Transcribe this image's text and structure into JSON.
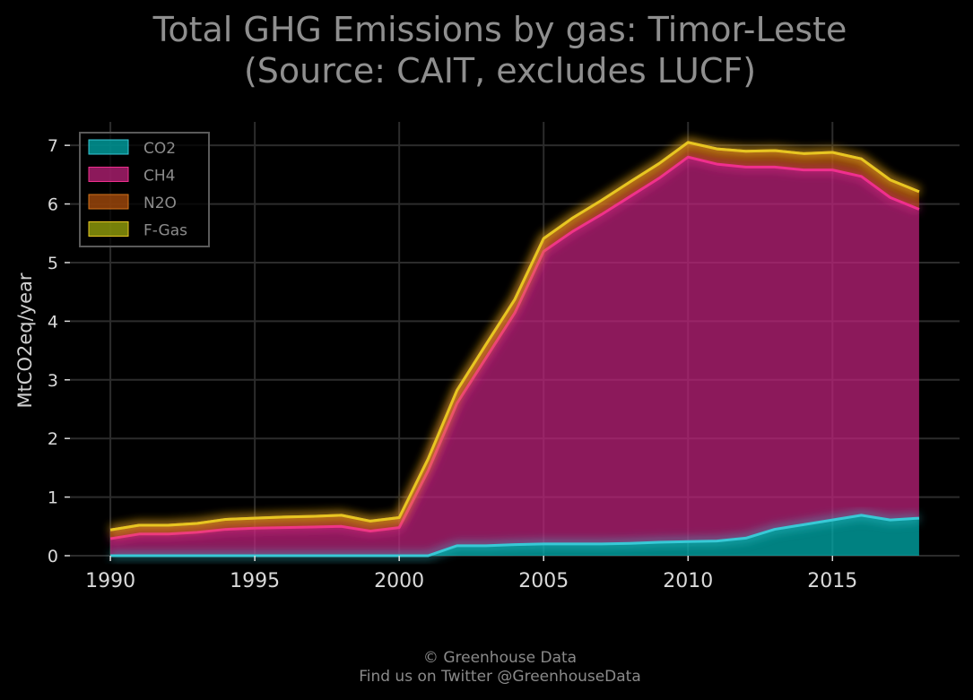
{
  "title": {
    "line1": "Total GHG Emissions by gas: Timor-Leste",
    "line2": "(Source: CAIT, excludes LUCF)"
  },
  "credits": {
    "line1": "© Greenhouse Data",
    "line2": "Find us on Twitter @GreenhouseData"
  },
  "chart_data": {
    "type": "area",
    "stacked": true,
    "title": "Total GHG Emissions by gas: Timor-Leste (Source: CAIT, excludes LUCF)",
    "xlabel": "",
    "ylabel": "MtCO2eq/year",
    "xlim": [
      1988.6,
      2019.4
    ],
    "ylim": [
      0,
      7.4
    ],
    "xticks": [
      1990,
      1995,
      2000,
      2005,
      2010,
      2015
    ],
    "yticks": [
      0,
      1,
      2,
      3,
      4,
      5,
      6,
      7
    ],
    "grid": true,
    "legend_position": "top-left",
    "x": [
      1990,
      1991,
      1992,
      1993,
      1994,
      1995,
      1996,
      1997,
      1998,
      1999,
      2000,
      2001,
      2002,
      2003,
      2004,
      2005,
      2006,
      2007,
      2008,
      2009,
      2010,
      2011,
      2012,
      2013,
      2014,
      2015,
      2016,
      2017,
      2018
    ],
    "series": [
      {
        "name": "CO2",
        "color": "#00b3b3",
        "line_color": "#38c9d6",
        "values": [
          0,
          0,
          0,
          0,
          0,
          0,
          0,
          0,
          0,
          0,
          0,
          0,
          0.17,
          0.17,
          0.19,
          0.2,
          0.2,
          0.2,
          0.21,
          0.23,
          0.24,
          0.25,
          0.3,
          0.45,
          0.53,
          0.61,
          0.69,
          0.61,
          0.64
        ]
      },
      {
        "name": "CH4",
        "color": "#c2237e",
        "line_color": "#f02f8e",
        "values": [
          0.29,
          0.37,
          0.37,
          0.4,
          0.45,
          0.47,
          0.48,
          0.49,
          0.5,
          0.42,
          0.48,
          1.45,
          2.43,
          3.2,
          3.95,
          4.99,
          5.33,
          5.62,
          5.92,
          6.21,
          6.56,
          6.43,
          6.33,
          6.18,
          6.05,
          5.97,
          5.78,
          5.5,
          5.27
        ]
      },
      {
        "name": "N2O",
        "color": "#b4520d",
        "line_color": "#d4731a",
        "values": [
          0.15,
          0.15,
          0.15,
          0.15,
          0.17,
          0.17,
          0.18,
          0.18,
          0.19,
          0.17,
          0.17,
          0.2,
          0.22,
          0.23,
          0.23,
          0.22,
          0.23,
          0.24,
          0.25,
          0.25,
          0.25,
          0.26,
          0.27,
          0.28,
          0.28,
          0.3,
          0.3,
          0.3,
          0.3
        ]
      },
      {
        "name": "F-Gas",
        "color": "#a3b00c",
        "line_color": "#e7c622",
        "values": [
          0,
          0,
          0,
          0,
          0,
          0,
          0,
          0,
          0,
          0,
          0,
          0,
          0,
          0,
          0,
          0,
          0,
          0,
          0,
          0,
          0,
          0,
          0,
          0,
          0,
          0,
          0,
          0,
          0
        ]
      }
    ]
  }
}
